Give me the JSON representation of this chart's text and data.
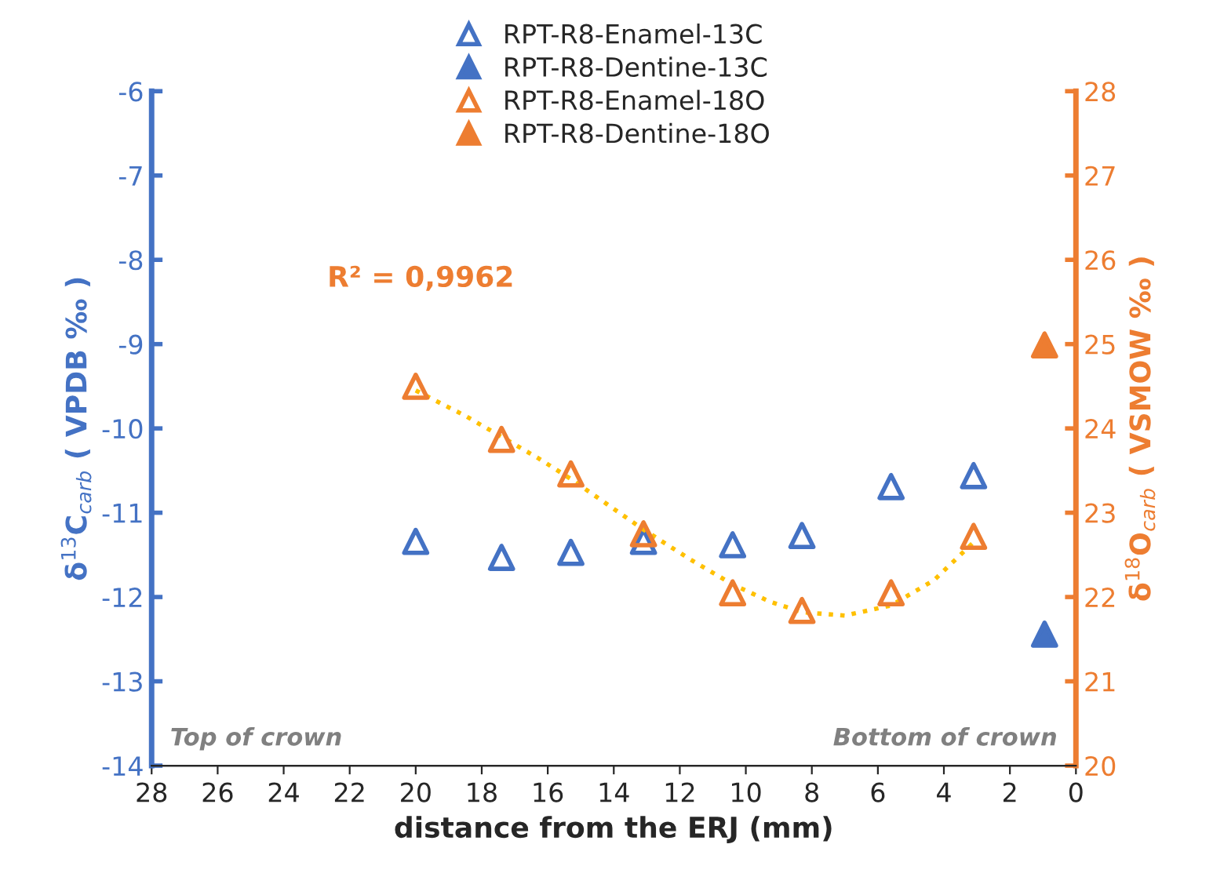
{
  "chart_data": {
    "type": "scatter",
    "xlabel": "distance from the ERJ (mm)",
    "ylabel": "δ$^{13}$C$_{carb}$ ( VPDB ‰ )",
    "y2label": "δ$^{18}$O$_{carb}$ ( VSMOW ‰ )",
    "xlim": [
      28,
      0
    ],
    "xticks": [
      28,
      26,
      24,
      22,
      20,
      18,
      16,
      14,
      12,
      10,
      8,
      6,
      4,
      2,
      0
    ],
    "ylim": [
      -14,
      -6
    ],
    "yticks": [
      -14,
      -13,
      -12,
      -11,
      -10,
      -9,
      -8,
      -7,
      -6
    ],
    "y2lim": [
      20,
      28
    ],
    "y2ticks": [
      20,
      21,
      22,
      23,
      24,
      25,
      26,
      27,
      28
    ],
    "grid": false,
    "legend": "top",
    "series": [
      {
        "name": "RPT-R8-Enamel-13C",
        "color": "#4472c4",
        "marker": "triangle",
        "x": [
          20.0,
          17.4,
          15.3,
          13.1,
          10.4,
          8.3,
          5.6,
          3.1
        ],
        "values": [
          -11.34,
          -11.53,
          -11.47,
          -11.34,
          -11.38,
          -11.27,
          -10.69,
          -10.56
        ]
      },
      {
        "name": "RPT-R8-Dentine-13C",
        "color": "#4472c4",
        "marker": "triangle",
        "x": [
          0.95
        ],
        "values": [
          -12.44
        ]
      },
      {
        "name": "RPT-R8-Enamel-18O",
        "color": "#ed7d31",
        "marker": "triangle",
        "axis": "y2",
        "x": [
          20.0,
          17.4,
          15.3,
          13.1,
          10.4,
          8.3,
          5.6,
          3.1
        ],
        "values": [
          24.5,
          23.87,
          23.46,
          22.75,
          22.05,
          21.84,
          22.05,
          22.72
        ]
      },
      {
        "name": "RPT-R8-Dentine-18O",
        "color": "#ed7d31",
        "marker": "triangle",
        "axis": "y2",
        "x": [
          0.95
        ],
        "values": [
          24.99
        ]
      },
      {
        "type": "line",
        "color": "#ffc000",
        "marker": "none",
        "line_style": "dotted",
        "axis": "y2",
        "x": [
          20.0,
          18.5,
          17.4,
          16.3,
          15.3,
          14.2,
          13.1,
          11.7,
          10.4,
          9.3,
          8.3,
          7.0,
          5.6,
          4.3,
          3.1
        ],
        "values": [
          24.45,
          24.15,
          23.9,
          23.65,
          23.4,
          23.1,
          22.8,
          22.45,
          22.15,
          21.95,
          21.82,
          21.78,
          21.9,
          22.2,
          22.65
        ]
      }
    ],
    "annotations": [
      "R² = 0,9962",
      "Top of crown",
      "Bottom of crown"
    ]
  }
}
